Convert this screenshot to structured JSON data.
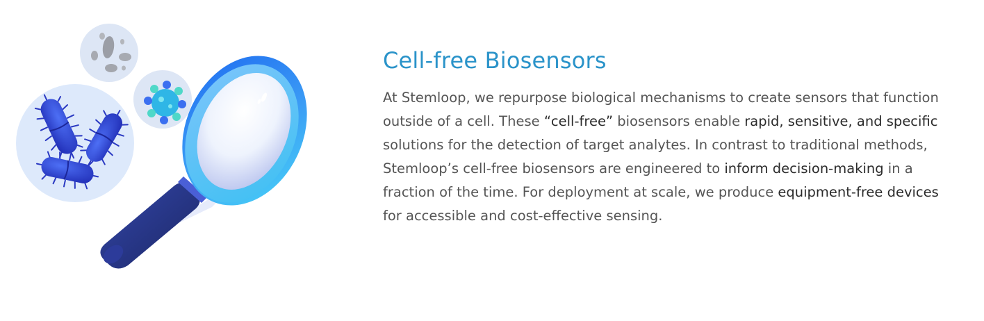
{
  "section": {
    "title": "Cell-free Biosensors",
    "paragraph": {
      "p1": "At Stemloop, we repurpose biological mechanisms to create sensors that function outside of a cell. These ",
      "b1": "“cell-free”",
      "p2": " biosensors enable ",
      "b2": "rapid, sensitive, and specific",
      "p3": " solutions for the detection of target analytes. In contrast to traditional methods, Stemloop’s cell-free biosensors are engineered to ",
      "b3": "inform decision-making",
      "p4": " in a fraction of the time. For deployment at scale, we produce ",
      "b4": "equipment-free devices",
      "p5": " for accessible and cost-effective sensing."
    }
  },
  "illustration": {
    "icon": "magnifier-with-microbes",
    "colors": {
      "bubble": "#dbe8fb",
      "bacteria": "#2f3fd6",
      "lens_ring": "#2f8cf0",
      "handle": "#26337e",
      "virus": "#25c6e8"
    }
  }
}
